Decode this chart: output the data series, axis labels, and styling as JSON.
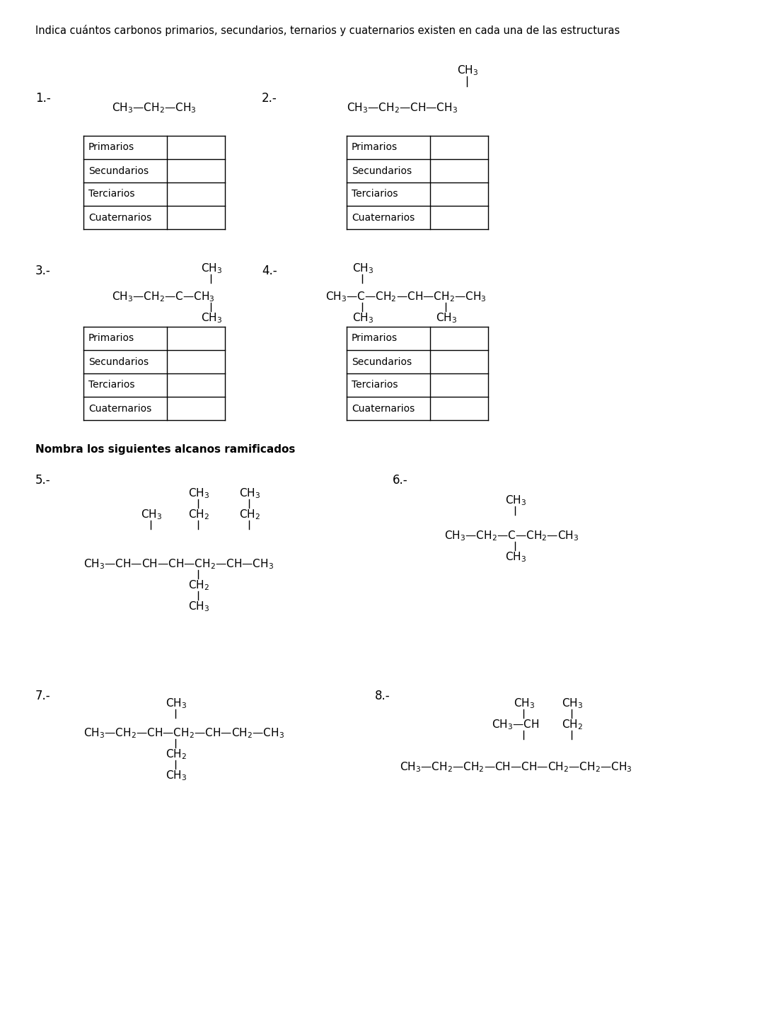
{
  "title": "Indica cuántos carbonos primarios, secundarios, ternarios y cuaternarios existen en cada una de las estructuras",
  "subtitle": "Nombra los siguientes alcanos ramificados",
  "bg_color": "#ffffff",
  "table_rows": [
    "Primarios",
    "Secundarios",
    "Terciarios",
    "Cuaternarios"
  ]
}
